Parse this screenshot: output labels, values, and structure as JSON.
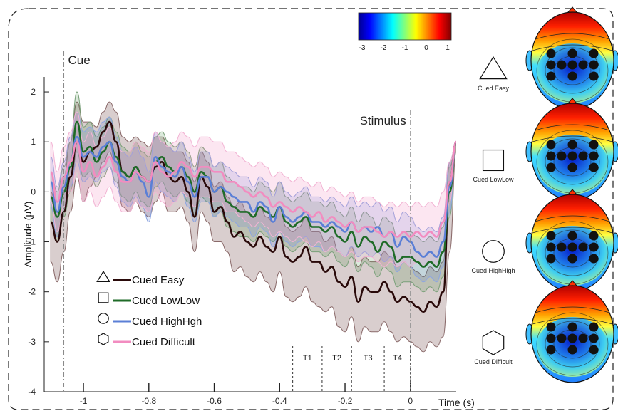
{
  "chart_data": {
    "type": "line",
    "title": "",
    "xlabel": "Time (s)",
    "ylabel": "Amplitude (µV)",
    "xlim": [
      -1.12,
      0.14
    ],
    "ylim": [
      -4,
      2.3
    ],
    "x_ticks": [
      -1,
      -0.8,
      -0.6,
      -0.4,
      -0.2,
      0
    ],
    "x_tick_labels": [
      "-1",
      "-0.8",
      "-0.6",
      "-0.4",
      "-0.2",
      "0"
    ],
    "y_ticks": [
      2,
      1,
      0,
      -1,
      -2,
      -3,
      -4
    ],
    "y_tick_labels": [
      "2",
      "1",
      "0",
      "-1",
      "-2",
      "-3",
      "-4"
    ],
    "grid": false,
    "legend_position": "bottom-left",
    "x": [
      -1.1,
      -1.08,
      -1.06,
      -1.04,
      -1.02,
      -1.0,
      -0.98,
      -0.96,
      -0.94,
      -0.92,
      -0.9,
      -0.88,
      -0.86,
      -0.84,
      -0.82,
      -0.8,
      -0.78,
      -0.76,
      -0.74,
      -0.72,
      -0.7,
      -0.68,
      -0.66,
      -0.64,
      -0.62,
      -0.6,
      -0.58,
      -0.56,
      -0.54,
      -0.52,
      -0.5,
      -0.48,
      -0.46,
      -0.44,
      -0.42,
      -0.4,
      -0.38,
      -0.36,
      -0.34,
      -0.32,
      -0.3,
      -0.28,
      -0.26,
      -0.24,
      -0.22,
      -0.2,
      -0.18,
      -0.16,
      -0.14,
      -0.12,
      -0.1,
      -0.08,
      -0.06,
      -0.04,
      -0.02,
      0.0,
      0.02,
      0.04,
      0.06,
      0.08,
      0.1,
      0.12,
      0.14
    ],
    "series": [
      {
        "name": "Cued Easy",
        "marker": "triangle",
        "color": "#2a0a0a",
        "values": [
          -0.6,
          -1.0,
          -0.4,
          0.3,
          1.0,
          0.6,
          0.8,
          0.9,
          1.2,
          1.4,
          1.0,
          0.4,
          0.3,
          0.5,
          0.3,
          0.2,
          0.5,
          0.6,
          0.3,
          0.2,
          0.3,
          0.0,
          -0.5,
          0.3,
          0.1,
          -0.4,
          -0.3,
          -0.6,
          -0.9,
          -0.8,
          -1.0,
          -1.1,
          -0.9,
          -1.1,
          -1.2,
          -0.9,
          -1.3,
          -1.4,
          -1.3,
          -1.1,
          -1.4,
          -1.4,
          -1.6,
          -1.5,
          -1.8,
          -1.9,
          -1.7,
          -2.2,
          -1.9,
          -2.0,
          -2.0,
          -1.8,
          -2.0,
          -2.2,
          -2.1,
          -2.2,
          -2.3,
          -2.4,
          -2.2,
          -2.3,
          -2.0,
          0.2,
          1.0
        ],
        "upper": [
          0.0,
          -0.4,
          0.3,
          1.0,
          1.8,
          1.4,
          1.4,
          1.3,
          1.6,
          1.8,
          1.6,
          1.1,
          1.0,
          1.1,
          1.0,
          0.9,
          1.1,
          1.1,
          0.9,
          0.8,
          0.8,
          0.6,
          0.2,
          0.8,
          0.6,
          0.1,
          0.2,
          -0.1,
          -0.3,
          -0.2,
          -0.4,
          -0.5,
          -0.3,
          -0.5,
          -0.6,
          -0.3,
          -0.7,
          -0.8,
          -0.7,
          -0.5,
          -0.8,
          -0.8,
          -1.0,
          -0.9,
          -1.2,
          -1.3,
          -1.1,
          -1.5,
          -1.3,
          -1.4,
          -1.4,
          -1.2,
          -1.3,
          -1.5,
          -1.4,
          -1.5,
          -1.6,
          -1.7,
          -1.5,
          -1.6,
          -1.4,
          0.6,
          1.0
        ],
        "lower": [
          -1.4,
          -1.8,
          -1.2,
          -0.4,
          0.3,
          -0.2,
          0.1,
          0.3,
          0.6,
          0.8,
          0.4,
          -0.3,
          -0.4,
          -0.2,
          -0.4,
          -0.5,
          -0.2,
          0.0,
          -0.4,
          -0.4,
          -0.3,
          -0.6,
          -1.2,
          -0.4,
          -0.6,
          -1.0,
          -1.0,
          -1.2,
          -1.6,
          -1.5,
          -1.7,
          -1.8,
          -1.6,
          -1.8,
          -2.0,
          -1.6,
          -2.1,
          -2.2,
          -2.1,
          -1.9,
          -2.2,
          -2.3,
          -2.4,
          -2.3,
          -2.7,
          -2.8,
          -2.5,
          -3.0,
          -2.7,
          -2.8,
          -2.8,
          -2.6,
          -2.8,
          -3.0,
          -2.9,
          -3.0,
          -3.1,
          -3.2,
          -3.0,
          -3.1,
          -2.9,
          -1.2,
          0.8
        ]
      },
      {
        "name": "Cued LowLow",
        "marker": "square",
        "color": "#1f6b28",
        "values": [
          -0.1,
          -0.5,
          0.0,
          0.5,
          1.4,
          0.8,
          0.9,
          0.6,
          0.8,
          1.0,
          0.7,
          0.4,
          0.3,
          0.5,
          0.3,
          0.2,
          0.6,
          0.7,
          0.5,
          0.4,
          0.5,
          0.3,
          0.0,
          0.4,
          0.3,
          0.0,
          0.1,
          -0.2,
          -0.3,
          -0.4,
          -0.4,
          -0.5,
          -0.3,
          -0.4,
          -0.5,
          -0.3,
          -0.6,
          -0.7,
          -0.6,
          -0.5,
          -0.7,
          -0.7,
          -0.8,
          -0.7,
          -0.9,
          -1.0,
          -0.8,
          -1.1,
          -0.9,
          -1.0,
          -1.2,
          -1.0,
          -1.1,
          -1.4,
          -1.3,
          -1.3,
          -1.4,
          -1.5,
          -1.4,
          -1.5,
          -1.2,
          0.0,
          1.0
        ],
        "upper": [
          0.4,
          0.0,
          0.5,
          1.0,
          2.0,
          1.3,
          1.4,
          1.1,
          1.3,
          1.5,
          1.2,
          0.9,
          0.8,
          1.0,
          0.8,
          0.7,
          1.1,
          1.2,
          1.0,
          0.9,
          1.0,
          0.8,
          0.5,
          0.9,
          0.8,
          0.5,
          0.6,
          0.3,
          0.2,
          0.1,
          0.1,
          0.0,
          0.2,
          0.1,
          0.0,
          0.2,
          -0.1,
          -0.2,
          -0.1,
          0.0,
          -0.2,
          -0.2,
          -0.3,
          -0.2,
          -0.4,
          -0.5,
          -0.3,
          -0.6,
          -0.4,
          -0.5,
          -0.7,
          -0.5,
          -0.6,
          -0.9,
          -0.8,
          -0.8,
          -0.9,
          -1.0,
          -0.9,
          -1.0,
          -0.7,
          0.5,
          1.0
        ],
        "lower": [
          -0.6,
          -1.0,
          -0.5,
          0.0,
          0.8,
          0.3,
          0.4,
          0.1,
          0.3,
          0.5,
          0.2,
          -0.1,
          -0.2,
          0.0,
          -0.2,
          -0.3,
          0.1,
          0.2,
          0.0,
          -0.1,
          0.0,
          -0.2,
          -0.5,
          -0.1,
          -0.2,
          -0.5,
          -0.4,
          -0.7,
          -0.8,
          -0.9,
          -0.9,
          -1.0,
          -0.8,
          -0.9,
          -1.0,
          -0.8,
          -1.1,
          -1.2,
          -1.1,
          -1.0,
          -1.2,
          -1.2,
          -1.3,
          -1.2,
          -1.4,
          -1.5,
          -1.3,
          -1.6,
          -1.4,
          -1.5,
          -1.7,
          -1.5,
          -1.6,
          -1.9,
          -1.8,
          -1.8,
          -1.9,
          -2.0,
          -1.9,
          -2.0,
          -1.7,
          -0.5,
          1.0
        ]
      },
      {
        "name": "Cued HighHgh",
        "marker": "circle",
        "color": "#5b7fd6",
        "values": [
          0.2,
          -0.4,
          0.1,
          0.6,
          1.1,
          0.7,
          0.8,
          0.7,
          0.9,
          1.0,
          0.6,
          0.3,
          0.2,
          0.4,
          0.2,
          -0.1,
          0.7,
          0.5,
          0.4,
          0.3,
          0.5,
          0.2,
          -0.1,
          0.3,
          0.3,
          0.0,
          0.1,
          0.0,
          -0.1,
          -0.2,
          -0.2,
          -0.4,
          -0.2,
          -0.3,
          -0.6,
          -0.3,
          -0.5,
          -0.6,
          -0.5,
          -0.4,
          -0.6,
          -0.6,
          -0.7,
          -0.6,
          -0.7,
          -0.8,
          -0.6,
          -0.8,
          -0.7,
          -0.8,
          -0.7,
          -0.9,
          -0.8,
          -1.1,
          -0.9,
          -1.0,
          -1.2,
          -1.3,
          -1.2,
          -1.3,
          -1.0,
          0.1,
          1.0
        ],
        "upper": [
          0.7,
          0.1,
          0.6,
          1.1,
          1.6,
          1.2,
          1.3,
          1.2,
          1.4,
          1.5,
          1.1,
          0.8,
          0.7,
          0.9,
          0.7,
          0.4,
          1.2,
          1.0,
          0.9,
          0.8,
          1.0,
          0.7,
          0.4,
          0.8,
          0.8,
          0.5,
          0.6,
          0.5,
          0.4,
          0.3,
          0.3,
          0.1,
          0.3,
          0.2,
          -0.1,
          0.2,
          0.0,
          -0.1,
          0.0,
          0.1,
          -0.1,
          -0.1,
          -0.2,
          -0.1,
          -0.2,
          -0.3,
          -0.1,
          -0.3,
          -0.2,
          -0.3,
          -0.2,
          -0.4,
          -0.3,
          -0.6,
          -0.4,
          -0.5,
          -0.7,
          -0.8,
          -0.7,
          -0.8,
          -0.5,
          0.6,
          1.0
        ],
        "lower": [
          -0.3,
          -0.9,
          -0.4,
          0.1,
          0.6,
          0.2,
          0.3,
          0.2,
          0.4,
          0.5,
          0.1,
          -0.2,
          -0.3,
          -0.1,
          -0.3,
          -0.6,
          0.2,
          0.0,
          -0.1,
          -0.2,
          0.0,
          -0.3,
          -0.6,
          -0.2,
          -0.2,
          -0.5,
          -0.4,
          -0.5,
          -0.6,
          -0.7,
          -0.7,
          -0.9,
          -0.7,
          -0.8,
          -1.1,
          -0.8,
          -1.0,
          -1.1,
          -1.0,
          -0.9,
          -1.1,
          -1.1,
          -1.2,
          -1.1,
          -1.2,
          -1.3,
          -1.1,
          -1.3,
          -1.2,
          -1.3,
          -1.2,
          -1.4,
          -1.3,
          -1.6,
          -1.4,
          -1.5,
          -1.7,
          -1.8,
          -1.7,
          -1.8,
          -1.5,
          -0.4,
          1.0
        ]
      },
      {
        "name": "Cued Difficult",
        "marker": "hexagon",
        "color": "#f28cc0",
        "values": [
          0.4,
          -0.2,
          0.3,
          0.6,
          1.0,
          0.4,
          0.6,
          0.3,
          0.5,
          0.7,
          0.4,
          0.2,
          0.2,
          0.4,
          0.3,
          0.2,
          0.6,
          0.4,
          0.3,
          0.4,
          0.6,
          0.5,
          0.3,
          0.5,
          0.5,
          0.4,
          0.4,
          0.2,
          0.2,
          0.1,
          0.0,
          -0.1,
          0.0,
          -0.1,
          -0.3,
          -0.2,
          -0.3,
          -0.4,
          -0.3,
          -0.4,
          -0.5,
          -0.4,
          -0.6,
          -0.5,
          -0.6,
          -0.7,
          -0.6,
          -0.8,
          -0.7,
          -0.7,
          -0.8,
          -0.9,
          -0.8,
          -0.9,
          -0.8,
          -0.9,
          -0.8,
          -0.9,
          -0.8,
          -0.9,
          -0.6,
          0.2,
          1.0
        ],
        "upper": [
          1.0,
          0.4,
          0.9,
          1.2,
          1.6,
          1.0,
          1.2,
          0.9,
          1.1,
          1.3,
          1.0,
          0.8,
          0.8,
          1.0,
          0.9,
          0.8,
          1.2,
          1.0,
          0.9,
          1.0,
          1.2,
          1.1,
          0.9,
          1.1,
          1.1,
          1.0,
          1.0,
          0.8,
          0.8,
          0.7,
          0.6,
          0.5,
          0.6,
          0.5,
          0.3,
          0.4,
          0.3,
          0.2,
          0.3,
          0.2,
          0.1,
          0.2,
          0.0,
          0.1,
          0.0,
          -0.1,
          0.0,
          -0.2,
          -0.1,
          -0.1,
          -0.2,
          -0.3,
          -0.2,
          -0.3,
          -0.2,
          -0.3,
          -0.2,
          -0.3,
          -0.2,
          -0.3,
          0.0,
          0.6,
          1.0
        ],
        "lower": [
          -0.2,
          -0.8,
          -0.3,
          0.0,
          0.4,
          -0.2,
          0.0,
          -0.3,
          -0.1,
          0.1,
          -0.2,
          -0.4,
          -0.4,
          -0.2,
          -0.3,
          -0.4,
          0.0,
          -0.2,
          -0.3,
          -0.2,
          0.0,
          -0.1,
          -0.3,
          -0.1,
          -0.1,
          -0.2,
          -0.2,
          -0.4,
          -0.4,
          -0.5,
          -0.6,
          -0.7,
          -0.6,
          -0.7,
          -0.9,
          -0.8,
          -0.9,
          -1.0,
          -0.9,
          -1.0,
          -1.1,
          -1.0,
          -1.2,
          -1.1,
          -1.2,
          -1.3,
          -1.2,
          -1.4,
          -1.3,
          -1.3,
          -1.4,
          -1.5,
          -1.4,
          -1.5,
          -1.4,
          -1.5,
          -1.4,
          -1.5,
          -1.4,
          -1.5,
          -1.2,
          -0.2,
          1.0
        ]
      }
    ],
    "annotations": [
      {
        "text": "Cue",
        "x": -1.06
      },
      {
        "text": "Stimulus",
        "x": 0.0
      }
    ],
    "time_windows": [
      {
        "label": "T1",
        "start": -0.36,
        "end": -0.27
      },
      {
        "label": "T2",
        "start": -0.27,
        "end": -0.18
      },
      {
        "label": "T3",
        "start": -0.18,
        "end": -0.08
      },
      {
        "label": "T4",
        "start": -0.08,
        "end": 0.0
      }
    ],
    "colorbar": {
      "range": [
        -3,
        1
      ],
      "ticks": [
        "-3",
        "-2",
        "-1",
        "0",
        "1"
      ],
      "colormap": "jet"
    },
    "topomaps": [
      {
        "label": "Cued Easy",
        "shape": "triangle"
      },
      {
        "label": "Cued LowLow",
        "shape": "square"
      },
      {
        "label": "Cued HighHigh",
        "shape": "circle"
      },
      {
        "label": "Cued Difficult",
        "shape": "hexagon"
      }
    ]
  }
}
